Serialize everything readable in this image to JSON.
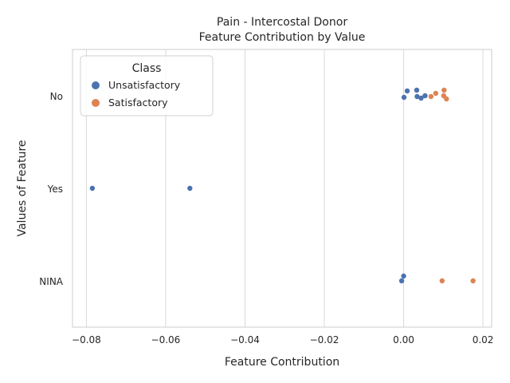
{
  "chart_data": {
    "type": "scatter",
    "title": "Pain - Intercostal Donor",
    "subtitle": "Feature Contribution by Value",
    "xlabel": "Feature Contribution",
    "ylabel": "Values of Feature",
    "xlim": [
      -0.0835,
      0.0222
    ],
    "x_ticks": [
      "−0.08",
      "−0.06",
      "−0.04",
      "−0.02",
      "0.00",
      "0.02"
    ],
    "x_tick_values": [
      -0.08,
      -0.06,
      -0.04,
      -0.02,
      0.0,
      0.02
    ],
    "categories": [
      "No",
      "Yes",
      "NINA"
    ],
    "grid": true,
    "legend": {
      "title": "Class",
      "placement": "top-left",
      "entries": [
        {
          "name": "Unsatisfactory",
          "color": "#4c72b0"
        },
        {
          "name": "Satisfactory",
          "color": "#dd8452"
        }
      ]
    },
    "series": [
      {
        "name": "Unsatisfactory",
        "color": "#4c72b0",
        "points": [
          {
            "category": "No",
            "x": 0.0001,
            "jitter": 0.02
          },
          {
            "category": "No",
            "x": 0.0009,
            "jitter": -0.06
          },
          {
            "category": "No",
            "x": 0.0033,
            "jitter": -0.07
          },
          {
            "category": "No",
            "x": 0.0034,
            "jitter": 0.01
          },
          {
            "category": "No",
            "x": 0.0044,
            "jitter": 0.03
          },
          {
            "category": "No",
            "x": 0.0054,
            "jitter": 0.0
          },
          {
            "category": "Yes",
            "x": -0.0785,
            "jitter": 0.0
          },
          {
            "category": "Yes",
            "x": -0.0539,
            "jitter": 0.0
          },
          {
            "category": "NINA",
            "x": 0.0,
            "jitter": -0.06
          },
          {
            "category": "NINA",
            "x": -0.0005,
            "jitter": 0.0
          }
        ]
      },
      {
        "name": "Satisfactory",
        "color": "#dd8452",
        "points": [
          {
            "category": "No",
            "x": 0.0069,
            "jitter": 0.01
          },
          {
            "category": "No",
            "x": 0.0081,
            "jitter": -0.03
          },
          {
            "category": "No",
            "x": 0.0102,
            "jitter": -0.07
          },
          {
            "category": "No",
            "x": 0.0101,
            "jitter": 0.0
          },
          {
            "category": "No",
            "x": 0.0108,
            "jitter": 0.04
          },
          {
            "category": "NINA",
            "x": 0.0097,
            "jitter": 0.0
          },
          {
            "category": "NINA",
            "x": 0.0175,
            "jitter": 0.0
          }
        ]
      }
    ]
  }
}
